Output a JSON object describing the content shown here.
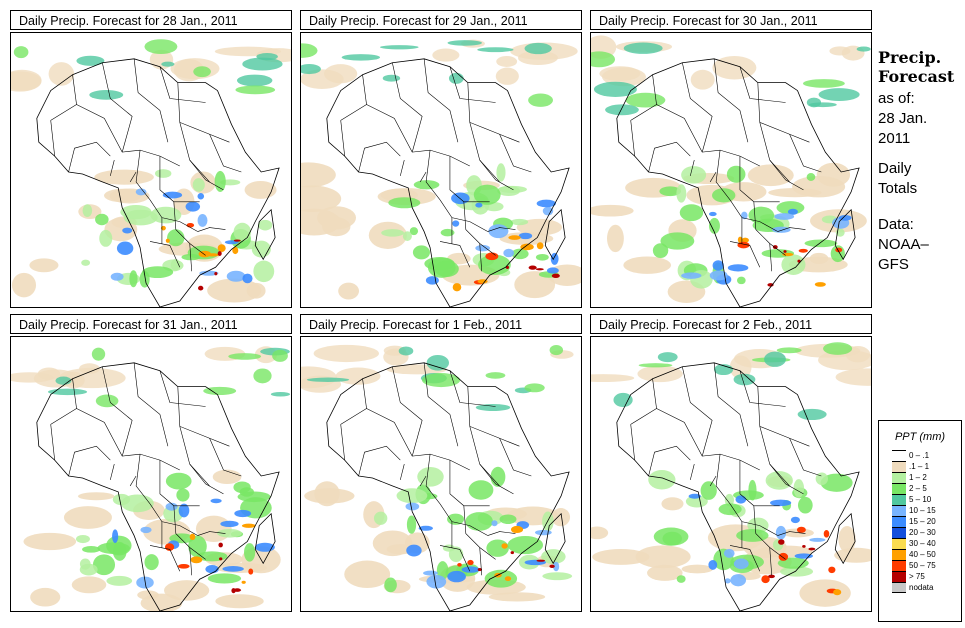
{
  "panels": [
    {
      "title": "Daily Precip. Forecast for  28 Jan., 2011"
    },
    {
      "title": "Daily Precip. Forecast for  29 Jan., 2011"
    },
    {
      "title": "Daily Precip. Forecast for  30 Jan., 2011"
    },
    {
      "title": "Daily Precip. Forecast for  31 Jan., 2011"
    },
    {
      "title": "Daily Precip. Forecast for  1 Feb., 2011"
    },
    {
      "title": "Daily Precip. Forecast for  2 Feb., 2011"
    }
  ],
  "side": {
    "title1": "Precip.",
    "title2": "Forecast",
    "asof": "as of:",
    "date1": "28 Jan.",
    "date2": "2011",
    "daily1": "Daily",
    "daily2": "Totals",
    "data1": "Data:",
    "data2": "NOAA–",
    "data3": "GFS"
  },
  "legend": {
    "title": "PPT (mm)",
    "items": [
      {
        "label": "0 – .1",
        "color": "#ffffff"
      },
      {
        "label": ".1 – 1",
        "color": "#f0dcbe"
      },
      {
        "label": "1 – 2",
        "color": "#b4f0a0"
      },
      {
        "label": "2 – 5",
        "color": "#78e664"
      },
      {
        "label": "5 – 10",
        "color": "#50c8a0"
      },
      {
        "label": "10 – 15",
        "color": "#78b4ff"
      },
      {
        "label": "15 – 20",
        "color": "#3c8cff"
      },
      {
        "label": "20 – 30",
        "color": "#1450dc"
      },
      {
        "label": "30 – 40",
        "color": "#fadc50"
      },
      {
        "label": "40 – 50",
        "color": "#ffa000"
      },
      {
        "label": "50 – 75",
        "color": "#ff3c00"
      },
      {
        "label": "> 75",
        "color": "#b40000"
      },
      {
        "label": "nodata",
        "color": "#c8c8c8"
      }
    ]
  }
}
